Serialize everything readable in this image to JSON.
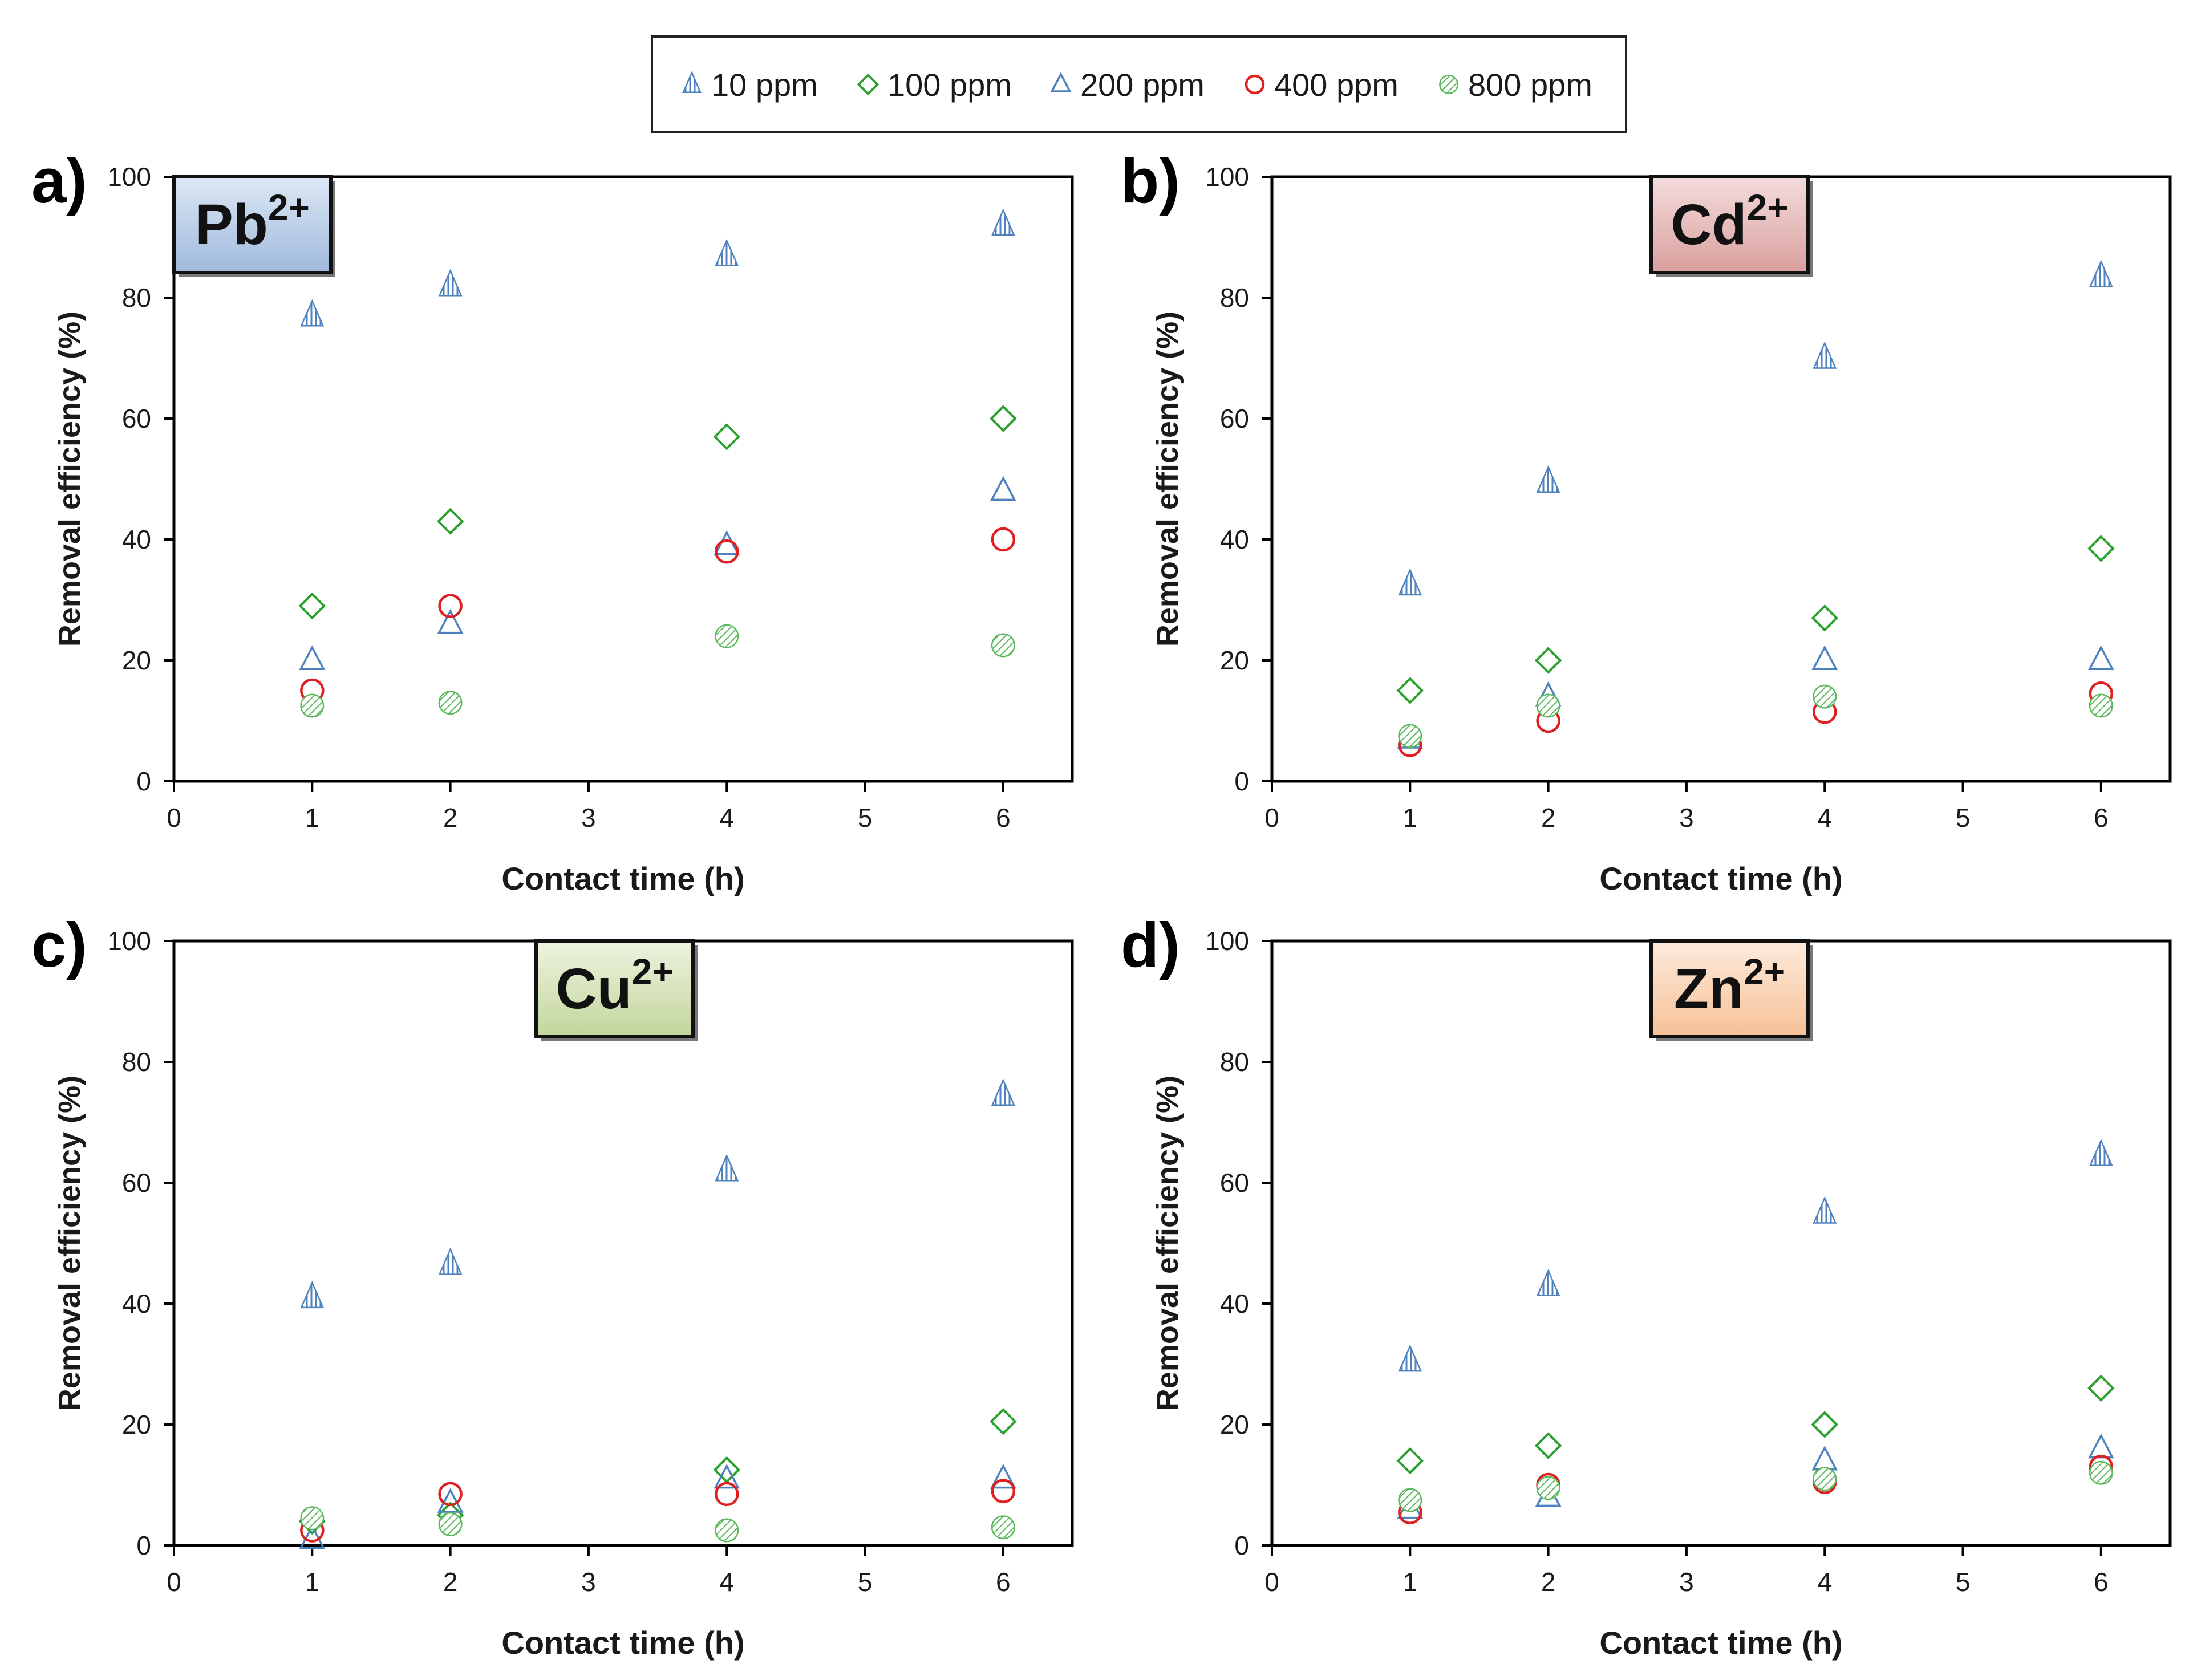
{
  "colors": {
    "ppm10": "#4f81bd",
    "ppm100": "#2ca02c",
    "ppm200": "#4f81bd",
    "ppm400": "#e02020",
    "ppm800": "#5cb85c",
    "ion_pb": "#b9cde5",
    "ion_cd": "#e6b9b8",
    "ion_cu": "#d7e4bd",
    "ion_zn": "#fcd5b5"
  },
  "legend": {
    "items": [
      {
        "key": "ppm10",
        "label": "10 ppm",
        "marker": "hatched-triangle-icon"
      },
      {
        "key": "ppm100",
        "label": "100 ppm",
        "marker": "diamond-icon"
      },
      {
        "key": "ppm200",
        "label": "200 ppm",
        "marker": "open-triangle-icon"
      },
      {
        "key": "ppm400",
        "label": "400 ppm",
        "marker": "open-circle-icon"
      },
      {
        "key": "ppm800",
        "label": "800 ppm",
        "marker": "hatched-circle-icon"
      }
    ]
  },
  "chart_data": [
    {
      "type": "scatter",
      "panel": "a)",
      "ion": "Pb",
      "ion_charge": "2+",
      "ion_color_key": "ion_pb",
      "ion_pos": "top-left",
      "xlabel": "Contact time (h)",
      "ylabel": "Removal efficiency (%)",
      "xlim": [
        0,
        6.5
      ],
      "ylim": [
        0,
        100
      ],
      "xticks": [
        0,
        1,
        2,
        3,
        4,
        5,
        6
      ],
      "yticks": [
        0,
        20,
        40,
        60,
        80,
        100
      ],
      "x": [
        1,
        2,
        4,
        6
      ],
      "series": [
        {
          "name": "10 ppm",
          "key": "ppm10",
          "values": [
            77,
            82,
            87,
            92
          ]
        },
        {
          "name": "100 ppm",
          "key": "ppm100",
          "values": [
            29,
            43,
            57,
            60
          ]
        },
        {
          "name": "200 ppm",
          "key": "ppm200",
          "values": [
            20,
            26,
            39,
            48
          ]
        },
        {
          "name": "400 ppm",
          "key": "ppm400",
          "values": [
            15,
            29,
            38,
            40
          ]
        },
        {
          "name": "800 ppm",
          "key": "ppm800",
          "values": [
            12.5,
            13,
            24,
            22.5
          ]
        }
      ]
    },
    {
      "type": "scatter",
      "panel": "b)",
      "ion": "Cd",
      "ion_charge": "2+",
      "ion_color_key": "ion_cd",
      "ion_pos": "top-right",
      "xlabel": "Contact time (h)",
      "ylabel": "Removal efficiency (%)",
      "xlim": [
        0,
        6.5
      ],
      "ylim": [
        0,
        100
      ],
      "xticks": [
        0,
        1,
        2,
        3,
        4,
        5,
        6
      ],
      "yticks": [
        0,
        20,
        40,
        60,
        80,
        100
      ],
      "x": [
        1,
        2,
        4,
        6
      ],
      "series": [
        {
          "name": "10 ppm",
          "key": "ppm10",
          "values": [
            32.5,
            49.5,
            70,
            83.5
          ]
        },
        {
          "name": "100 ppm",
          "key": "ppm100",
          "values": [
            15,
            20,
            27,
            38.5
          ]
        },
        {
          "name": "200 ppm",
          "key": "ppm200",
          "values": [
            7,
            14,
            20,
            20
          ]
        },
        {
          "name": "400 ppm",
          "key": "ppm400",
          "values": [
            6,
            10,
            11.5,
            14.5
          ]
        },
        {
          "name": "800 ppm",
          "key": "ppm800",
          "values": [
            7.5,
            12.5,
            14,
            12.5
          ]
        }
      ]
    },
    {
      "type": "scatter",
      "panel": "c)",
      "ion": "Cu",
      "ion_charge": "2+",
      "ion_color_key": "ion_cu",
      "ion_pos": "top-center",
      "xlabel": "Contact time (h)",
      "ylabel": "Removal efficiency (%)",
      "xlim": [
        0,
        6.5
      ],
      "ylim": [
        0,
        100
      ],
      "xticks": [
        0,
        1,
        2,
        3,
        4,
        5,
        6
      ],
      "yticks": [
        0,
        20,
        40,
        60,
        80,
        100
      ],
      "x": [
        1,
        2,
        4,
        6
      ],
      "series": [
        {
          "name": "10 ppm",
          "key": "ppm10",
          "values": [
            41,
            46.5,
            62,
            74.5
          ]
        },
        {
          "name": "100 ppm",
          "key": "ppm100",
          "values": [
            4,
            5,
            12.5,
            20.5
          ]
        },
        {
          "name": "200 ppm",
          "key": "ppm200",
          "values": [
            1,
            7,
            11,
            11
          ]
        },
        {
          "name": "400 ppm",
          "key": "ppm400",
          "values": [
            2.5,
            8.5,
            8.5,
            9
          ]
        },
        {
          "name": "800 ppm",
          "key": "ppm800",
          "values": [
            4.5,
            3.5,
            2.5,
            3
          ]
        }
      ]
    },
    {
      "type": "scatter",
      "panel": "d)",
      "ion": "Zn",
      "ion_charge": "2+",
      "ion_color_key": "ion_zn",
      "ion_pos": "top-right",
      "xlabel": "Contact time (h)",
      "ylabel": "Removal efficiency (%)",
      "xlim": [
        0,
        6.5
      ],
      "ylim": [
        0,
        100
      ],
      "xticks": [
        0,
        1,
        2,
        3,
        4,
        5,
        6
      ],
      "yticks": [
        0,
        20,
        40,
        60,
        80,
        100
      ],
      "x": [
        1,
        2,
        4,
        6
      ],
      "series": [
        {
          "name": "10 ppm",
          "key": "ppm10",
          "values": [
            30.5,
            43,
            55,
            64.5
          ]
        },
        {
          "name": "100 ppm",
          "key": "ppm100",
          "values": [
            14,
            16.5,
            20,
            26
          ]
        },
        {
          "name": "200 ppm",
          "key": "ppm200",
          "values": [
            6,
            8,
            14,
            16
          ]
        },
        {
          "name": "400 ppm",
          "key": "ppm400",
          "values": [
            5.5,
            10,
            10.5,
            13
          ]
        },
        {
          "name": "800 ppm",
          "key": "ppm800",
          "values": [
            7.5,
            9.5,
            11,
            12
          ]
        }
      ]
    }
  ]
}
